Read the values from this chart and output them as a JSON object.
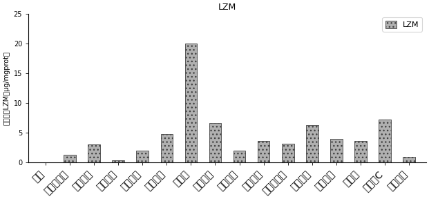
{
  "title": "LZM",
  "ylabel": "溶菌酶（LZM，μg/mgprot）",
  "categories": [
    "对照",
    "酵母葡多糖",
    "香菇多糖",
    "竹叶黄酮",
    "銀耳多糖",
    "海带多糖",
    "藏木香",
    "左旋咊唠",
    "黄芙多糖",
    "女草多糖",
    "茶树菇多糖",
    "灵芝多糖",
    "天之多糖",
    "中药素",
    "维生素C",
    "枸杞多糖"
  ],
  "values": [
    0.05,
    1.3,
    3.0,
    0.4,
    2.0,
    4.8,
    20.0,
    6.7,
    2.0,
    3.6,
    3.2,
    6.3,
    4.0,
    3.6,
    7.2,
    1.0
  ],
  "bar_color": "#b0b0b0",
  "bar_edge_color": "#404040",
  "ylim": [
    0,
    25
  ],
  "yticks": [
    0,
    5,
    10,
    15,
    20,
    25
  ],
  "legend_label": "LZM",
  "figsize": [
    6.21,
    2.88
  ],
  "dpi": 100,
  "bar_width": 0.5
}
